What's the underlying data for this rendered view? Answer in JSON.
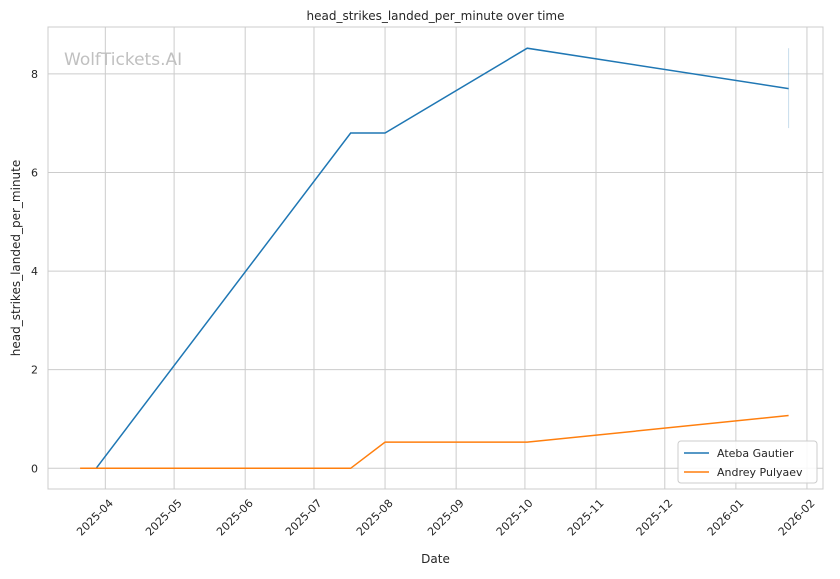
{
  "chart_data": {
    "type": "line",
    "title": "head_strikes_landed_per_minute over time",
    "xlabel": "Date",
    "ylabel": "head_strikes_landed_per_minute",
    "watermark": "WolfTickets.AI",
    "xlim": [
      "2025-03-07",
      "2026-02-08"
    ],
    "ylim": [
      -0.42,
      8.95
    ],
    "x_ticks": [
      "2025-04",
      "2025-05",
      "2025-06",
      "2025-07",
      "2025-08",
      "2025-09",
      "2025-10",
      "2025-11",
      "2025-12",
      "2026-01",
      "2026-02"
    ],
    "y_ticks": [
      0,
      2,
      4,
      6,
      8
    ],
    "grid": true,
    "legend_position": "lower-right",
    "series": [
      {
        "name": "Ateba Gautier",
        "color": "#1f77b4",
        "x": [
          "2025-03-28",
          "2025-07-17",
          "2025-08-01",
          "2025-10-02",
          "2026-01-24"
        ],
        "y": [
          0,
          6.8,
          6.8,
          8.52,
          7.7
        ],
        "band_at_last": [
          6.9,
          8.52
        ]
      },
      {
        "name": "Andrey Pulyaev",
        "color": "#ff7f0e",
        "x": [
          "2025-03-21",
          "2025-07-17",
          "2025-08-01",
          "2025-10-02",
          "2026-01-24"
        ],
        "y": [
          0,
          0,
          0.53,
          0.53,
          1.07
        ]
      }
    ]
  }
}
